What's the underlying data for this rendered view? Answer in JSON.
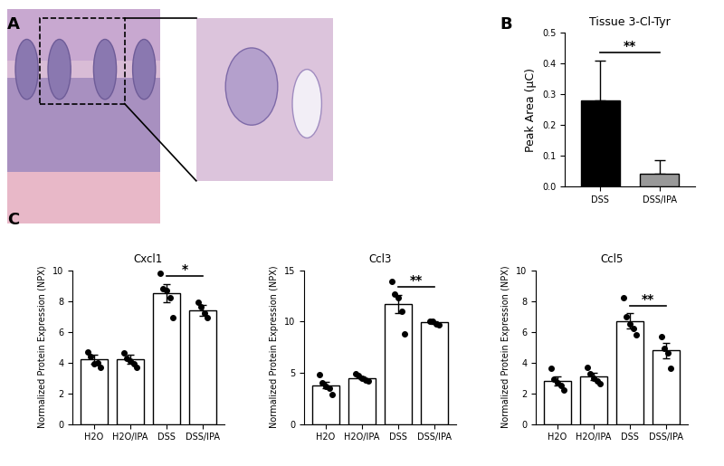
{
  "panel_labels": [
    "A",
    "B",
    "C"
  ],
  "chart_data": [
    {
      "type": "bar",
      "title": "Tissue 3-Cl-Tyr",
      "y_label": "Peak Area (µC)",
      "categories": [
        "DSS",
        "DSS/IPA"
      ],
      "values": [
        0.28,
        0.04
      ],
      "errors": [
        0.13,
        0.045
      ],
      "colors": [
        "#000000",
        "#999999"
      ],
      "ylim": [
        0,
        0.5
      ],
      "yticks": [
        0.0,
        0.1,
        0.2,
        0.3,
        0.4,
        0.5
      ],
      "significance": {
        "text": "**",
        "between": [
          "DSS",
          "DSS/IPA"
        ]
      }
    },
    {
      "type": "bar",
      "title": "Cxcl1",
      "y_label": "Normalized Protein Expression (NPX)",
      "categories": [
        "H2O",
        "H2O/IPA",
        "DSS",
        "DSS/IPA"
      ],
      "values": [
        4.2,
        4.2,
        8.5,
        7.4
      ],
      "errors": [
        0.3,
        0.3,
        0.6,
        0.35
      ],
      "points": [
        [
          4.7,
          4.4,
          3.9,
          4.0,
          3.7
        ],
        [
          4.6,
          4.3,
          4.1,
          3.9,
          3.7
        ],
        [
          9.8,
          8.8,
          8.7,
          8.2,
          6.9
        ],
        [
          7.9,
          7.6,
          7.2,
          6.9
        ]
      ],
      "color": "#ffffff",
      "ylim": [
        0,
        10
      ],
      "yticks": [
        0,
        2,
        4,
        6,
        8,
        10
      ],
      "significance": {
        "text": "*",
        "between": [
          "DSS",
          "DSS/IPA"
        ]
      }
    },
    {
      "type": "bar",
      "title": "Ccl3",
      "y_label": "Normalized Protein Expression (NPX)",
      "categories": [
        "H2O",
        "H2O/IPA",
        "DSS",
        "DSS/IPA"
      ],
      "values": [
        3.8,
        4.5,
        11.7,
        9.9
      ],
      "errors": [
        0.3,
        0.15,
        0.9,
        0.1
      ],
      "points": [
        [
          4.8,
          4.0,
          3.7,
          3.5,
          2.9
        ],
        [
          4.9,
          4.7,
          4.5,
          4.3,
          4.2
        ],
        [
          13.9,
          12.7,
          12.3,
          11.0,
          8.8
        ],
        [
          10.0,
          10.0,
          9.8,
          9.7
        ]
      ],
      "color": "#ffffff",
      "ylim": [
        0,
        15
      ],
      "yticks": [
        0,
        5,
        10,
        15
      ],
      "significance": {
        "text": "**",
        "between": [
          "DSS",
          "DSS/IPA"
        ]
      }
    },
    {
      "type": "bar",
      "title": "Ccl5",
      "y_label": "Normalized Protein Expression (NPX)",
      "categories": [
        "H2O",
        "H2O/IPA",
        "DSS",
        "DSS/IPA"
      ],
      "values": [
        2.8,
        3.1,
        6.7,
        4.8
      ],
      "errors": [
        0.3,
        0.25,
        0.5,
        0.5
      ],
      "points": [
        [
          3.6,
          2.9,
          2.7,
          2.5,
          2.2
        ],
        [
          3.7,
          3.3,
          3.0,
          2.8,
          2.6
        ],
        [
          8.2,
          7.0,
          6.5,
          6.2,
          5.8
        ],
        [
          5.7,
          4.9,
          4.6,
          3.6
        ]
      ],
      "color": "#ffffff",
      "ylim": [
        0,
        10
      ],
      "yticks": [
        0,
        2,
        4,
        6,
        8,
        10
      ],
      "significance": {
        "text": "**",
        "between": [
          "DSS",
          "DSS/IPA"
        ]
      }
    }
  ]
}
